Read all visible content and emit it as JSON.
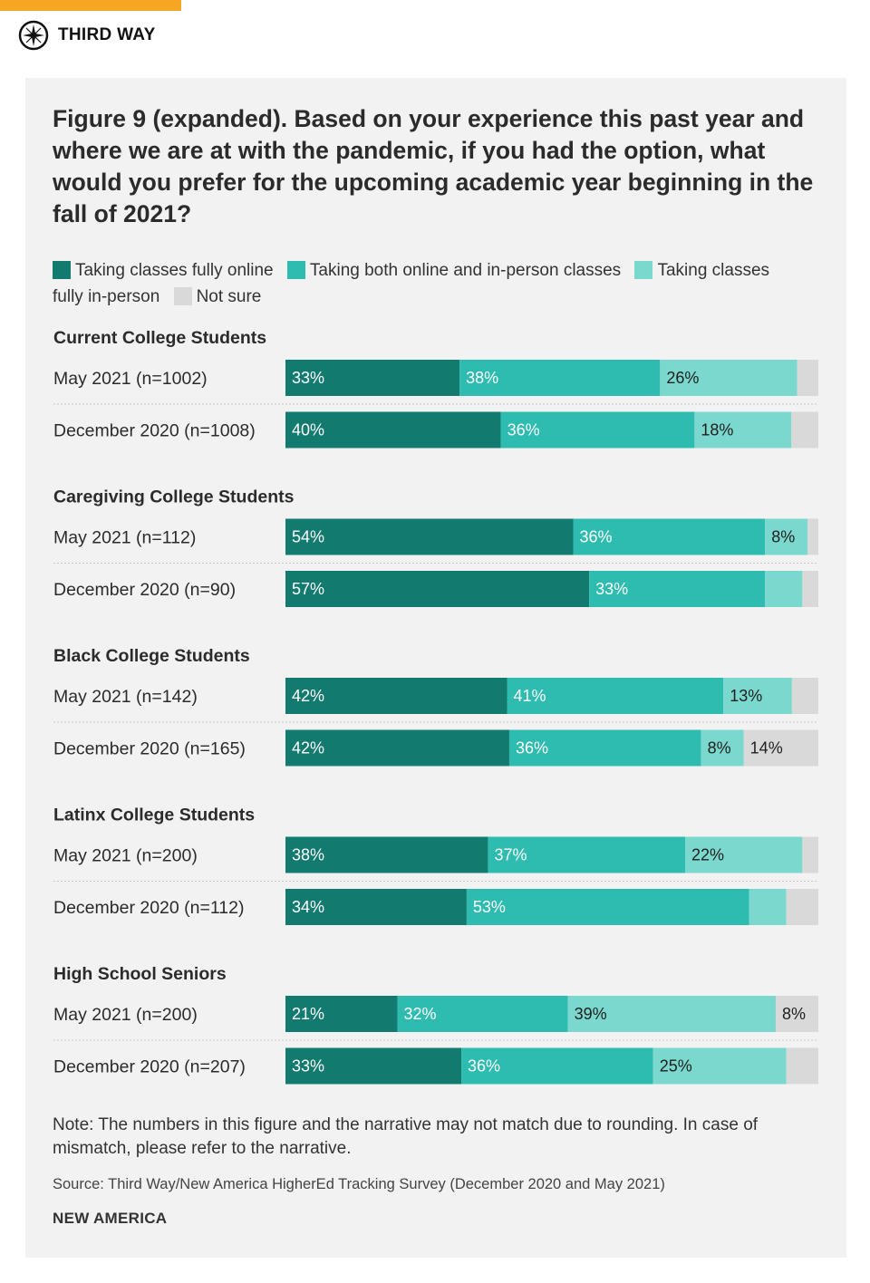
{
  "brand": {
    "name": "THIRD WAY",
    "icon": "compass-icon"
  },
  "colors": {
    "accent": "#f5a623",
    "panel": "#f2f2f2",
    "online": "#137a70",
    "both": "#2fbcb0",
    "inperson": "#7bd8ce",
    "notsure": "#d9d9d9"
  },
  "chart_data": {
    "type": "bar",
    "orientation": "horizontal",
    "stacked": true,
    "title": "Figure 9 (expanded). Based on your experience this past year and where we are at with the pandemic, if you had the option, what would you prefer for the upcoming academic year beginning in the fall of 2021?",
    "legend": [
      {
        "key": "online",
        "label": "Taking classes fully online",
        "color": "#137a70"
      },
      {
        "key": "both",
        "label": "Taking both online and in-person classes",
        "color": "#2fbcb0"
      },
      {
        "key": "inperson",
        "label": "Taking classes fully in-person",
        "color": "#7bd8ce"
      },
      {
        "key": "notsure",
        "label": "Not sure",
        "color": "#d9d9d9"
      }
    ],
    "xlim": [
      0,
      100
    ],
    "groups": [
      {
        "name": "Current College Students",
        "rows": [
          {
            "label": "May 2021 (n=1002)",
            "values": [
              33,
              38,
              26,
              4
            ],
            "labels": [
              "33%",
              "38%",
              "26%",
              ""
            ]
          },
          {
            "label": "December 2020 (n=1008)",
            "values": [
              40,
              36,
              18,
              5
            ],
            "labels": [
              "40%",
              "36%",
              "18%",
              ""
            ]
          }
        ]
      },
      {
        "name": "Caregiving College Students",
        "rows": [
          {
            "label": "May 2021 (n=112)",
            "values": [
              54,
              36,
              8,
              2
            ],
            "labels": [
              "54%",
              "36%",
              "8%",
              ""
            ]
          },
          {
            "label": "December 2020 (n=90)",
            "values": [
              57,
              33,
              7,
              3
            ],
            "labels": [
              "57%",
              "33%",
              "",
              ""
            ]
          }
        ]
      },
      {
        "name": "Black College Students",
        "rows": [
          {
            "label": "May 2021 (n=142)",
            "values": [
              42,
              41,
              13,
              5
            ],
            "labels": [
              "42%",
              "41%",
              "13%",
              ""
            ]
          },
          {
            "label": "December 2020 (n=165)",
            "values": [
              42,
              36,
              8,
              14
            ],
            "labels": [
              "42%",
              "36%",
              "8%",
              "14%"
            ]
          }
        ]
      },
      {
        "name": "Latinx College Students",
        "rows": [
          {
            "label": "May 2021 (n=200)",
            "values": [
              38,
              37,
              22,
              3
            ],
            "labels": [
              "38%",
              "37%",
              "22%",
              ""
            ]
          },
          {
            "label": "December 2020 (n=112)",
            "values": [
              34,
              53,
              7,
              6
            ],
            "labels": [
              "34%",
              "53%",
              "",
              ""
            ]
          }
        ]
      },
      {
        "name": "High School Seniors",
        "rows": [
          {
            "label": "May 2021 (n=200)",
            "values": [
              21,
              32,
              39,
              8
            ],
            "labels": [
              "21%",
              "32%",
              "39%",
              "8%"
            ]
          },
          {
            "label": "December 2020 (n=207)",
            "values": [
              33,
              36,
              25,
              6
            ],
            "labels": [
              "33%",
              "36%",
              "25%",
              ""
            ]
          }
        ]
      }
    ]
  },
  "note": "Note: The numbers in this figure and the narrative may not match due to rounding. In case of mismatch, please refer to the narrative.",
  "source": "Source: Third Way/New America HigherEd Tracking Survey (December 2020 and May 2021)",
  "footer_org": "NEW AMERICA"
}
